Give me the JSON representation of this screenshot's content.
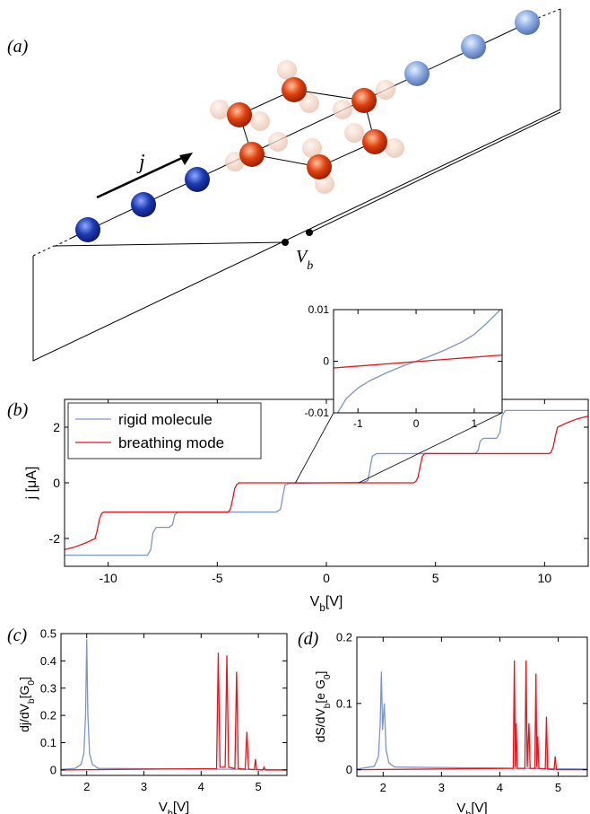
{
  "schematic": {
    "panel_label": "(a)",
    "current_label": "j",
    "voltage_label": [
      "V",
      "b"
    ]
  },
  "chart_data": [
    {
      "type": "line",
      "panel_label": "(b)",
      "x_label": [
        "V",
        "b",
        "[V]"
      ],
      "y_label": "j [μA]",
      "xlim": [
        -12,
        12
      ],
      "ylim": [
        -3,
        3
      ],
      "xticks": [
        -10,
        -5,
        0,
        5,
        10
      ],
      "yticks": [
        -2,
        0,
        2
      ],
      "legend": "upper left",
      "series": [
        {
          "name": "rigid molecule",
          "color": "#7b96c8",
          "x": [
            -12,
            -8.2,
            -8.05,
            -7.95,
            -7.8,
            -7.2,
            -7.05,
            -6.95,
            -6.8,
            -2.3,
            -2.1,
            -2.0,
            -1.9,
            -1.7,
            1.7,
            1.9,
            2.0,
            2.1,
            2.3,
            6.8,
            6.95,
            7.05,
            7.2,
            7.8,
            7.95,
            8.05,
            8.2,
            12
          ],
          "values": [
            -2.6,
            -2.6,
            -2.4,
            -1.8,
            -1.6,
            -1.6,
            -1.5,
            -1.15,
            -1.05,
            -1.05,
            -0.95,
            -0.5,
            -0.08,
            -0.02,
            0.02,
            0.08,
            0.5,
            0.95,
            1.05,
            1.05,
            1.15,
            1.5,
            1.6,
            1.6,
            1.8,
            2.4,
            2.6,
            2.6
          ]
        },
        {
          "name": "breathing mode",
          "color": "#e8141c",
          "x": [
            -12,
            -11.5,
            -11,
            -10.6,
            -10.5,
            -10.4,
            -10.3,
            -10.2,
            -4.5,
            -4.4,
            -4.3,
            -4.2,
            -4.1,
            -4.0,
            4.0,
            4.1,
            4.2,
            4.3,
            4.4,
            4.5,
            10.2,
            10.3,
            10.4,
            10.5,
            10.6,
            11,
            11.5,
            12
          ],
          "values": [
            -2.4,
            -2.3,
            -2.15,
            -2.0,
            -1.7,
            -1.3,
            -1.1,
            -1.05,
            -1.05,
            -0.95,
            -0.6,
            -0.2,
            -0.05,
            0,
            0,
            0.05,
            0.2,
            0.6,
            0.95,
            1.05,
            1.05,
            1.1,
            1.3,
            1.7,
            2.0,
            2.15,
            2.3,
            2.4
          ]
        }
      ]
    },
    {
      "type": "line",
      "xlim": [
        -1.42,
        1.48
      ],
      "ylim": [
        -0.01,
        0.01
      ],
      "xticks": [
        -1,
        0,
        1
      ],
      "yticks": [
        -0.01,
        0,
        0.01
      ],
      "series": [
        {
          "color": "#7b96c8",
          "x": [
            -1.35,
            -1.2,
            -1,
            -0.8,
            -0.5,
            -0.2,
            0,
            0.2,
            0.5,
            0.8,
            1,
            1.2,
            1.45
          ],
          "values": [
            -0.01,
            -0.0072,
            -0.0052,
            -0.0038,
            -0.0022,
            -0.0008,
            0,
            0.0008,
            0.0022,
            0.0038,
            0.0052,
            0.0072,
            0.01
          ]
        },
        {
          "color": "#e8141c",
          "x": [
            -1.42,
            1.48
          ],
          "values": [
            -0.0013,
            0.0012
          ]
        }
      ]
    },
    {
      "type": "line",
      "panel_label": "(c)",
      "x_label": [
        "V",
        "b",
        "[V]"
      ],
      "y_label": [
        "dj/dV",
        "b",
        "[G",
        "0",
        "]"
      ],
      "xlim": [
        1.55,
        5.5
      ],
      "ylim": [
        -0.02,
        0.5
      ],
      "xticks": [
        2,
        3,
        4,
        5
      ],
      "yticks": [
        0,
        0.1,
        0.2,
        0.3,
        0.4,
        0.5
      ],
      "series": [
        {
          "color": "#7b96c8",
          "x": [
            1.55,
            1.8,
            1.9,
            1.95,
            1.98,
            2.0,
            2.02,
            2.05,
            2.1,
            2.2,
            5.5
          ],
          "values": [
            0.002,
            0.006,
            0.02,
            0.06,
            0.2,
            0.48,
            0.2,
            0.06,
            0.02,
            0.006,
            0.001
          ]
        },
        {
          "color": "#e8141c",
          "x": [
            1.55,
            4.27,
            4.3,
            4.33,
            4.42,
            4.45,
            4.48,
            4.59,
            4.62,
            4.65,
            4.77,
            4.8,
            4.83,
            4.93,
            4.95,
            4.97,
            5.08,
            5.1,
            5.12,
            5.5
          ],
          "values": [
            0,
            0.005,
            0.43,
            0.01,
            0.01,
            0.42,
            0.01,
            0.005,
            0.36,
            0.005,
            0.003,
            0.14,
            0.003,
            0.001,
            0.04,
            0.001,
            0,
            0.01,
            0,
            0
          ]
        }
      ]
    },
    {
      "type": "line",
      "panel_label": "(d)",
      "x_label": [
        "V",
        "b",
        "[V]"
      ],
      "y_label": [
        "dS/dV",
        "b",
        "[e G",
        "0",
        "]"
      ],
      "xlim": [
        1.55,
        5.5
      ],
      "ylim": [
        -0.01,
        0.2
      ],
      "xticks": [
        2,
        3,
        4,
        5
      ],
      "yticks": [
        0,
        0.1,
        0.2
      ],
      "series": [
        {
          "color": "#7b96c8",
          "x": [
            1.55,
            1.85,
            1.92,
            1.95,
            1.97,
            1.99,
            2.02,
            2.05,
            2.1,
            2.2,
            5.5
          ],
          "values": [
            0.001,
            0.005,
            0.02,
            0.07,
            0.148,
            0.06,
            0.1,
            0.03,
            0.01,
            0.004,
            0.001
          ]
        },
        {
          "color": "#e8141c",
          "x": [
            1.55,
            4.23,
            4.25,
            4.265,
            4.28,
            4.3,
            4.43,
            4.45,
            4.47,
            4.5,
            4.52,
            4.6,
            4.62,
            4.635,
            4.65,
            4.67,
            4.78,
            4.8,
            4.82,
            4.93,
            4.95,
            4.97,
            5.5
          ],
          "values": [
            0,
            0.002,
            0.165,
            0.004,
            0.07,
            0.002,
            0.002,
            0.165,
            0.004,
            0.07,
            0.002,
            0.002,
            0.145,
            0.004,
            0.05,
            0.002,
            0.001,
            0.08,
            0.001,
            0,
            0.02,
            0,
            0
          ]
        }
      ]
    }
  ]
}
